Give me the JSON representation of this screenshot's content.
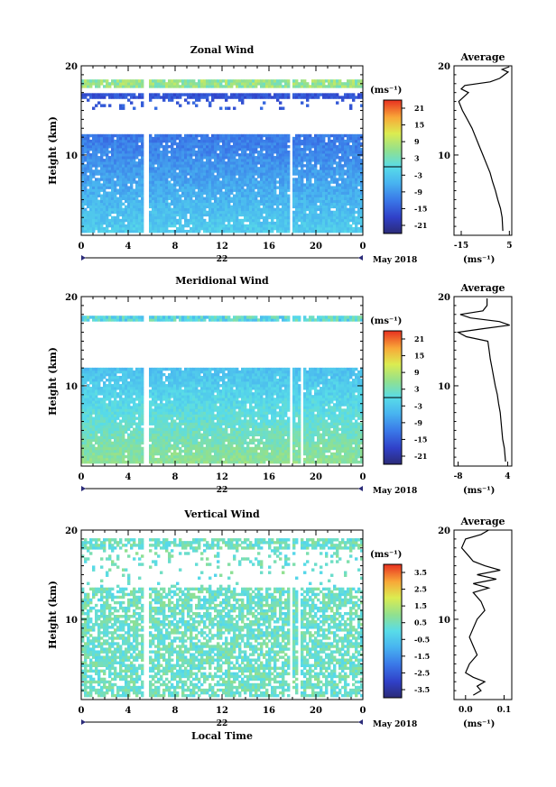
{
  "chart_data": [
    {
      "type": "heatmap",
      "title": "Zonal Wind",
      "ylabel": "Height (km)",
      "yticks": [
        "20",
        "10"
      ],
      "xticks": [
        "0",
        "4",
        "8",
        "12",
        "16",
        "20",
        "0"
      ],
      "xlim": [
        0,
        24
      ],
      "ylim": [
        1,
        20
      ],
      "date_mark": "22",
      "date_label": "May 2018",
      "colorbar": {
        "unit": "(ms⁻¹)",
        "ticks": [
          "21",
          "15",
          "9",
          "3",
          "-3",
          "-9",
          "-15",
          "-21"
        ],
        "range": [
          -24,
          24
        ]
      },
      "average_panel": {
        "title": "Average",
        "xlabel": "(ms⁻¹)",
        "xticks": [
          "-15",
          "5"
        ],
        "yticks": [
          "20",
          "10"
        ],
        "xlim": [
          -18,
          6
        ],
        "profile": [
          [
            1.5,
            2.3
          ],
          [
            3,
            2.0
          ],
          [
            4,
            1.3
          ],
          [
            5,
            0.2
          ],
          [
            6,
            -0.8
          ],
          [
            7,
            -2.0
          ],
          [
            8,
            -3.0
          ],
          [
            9,
            -4.5
          ],
          [
            10,
            -6.0
          ],
          [
            11,
            -7.5
          ],
          [
            12,
            -9.0
          ],
          [
            13,
            -10.5
          ],
          [
            14,
            -12.5
          ],
          [
            15,
            -14.5
          ],
          [
            16,
            -16.0
          ],
          [
            16.5,
            -14.0
          ],
          [
            17,
            -12.0
          ],
          [
            17.4,
            -15.0
          ],
          [
            17.8,
            -13.5
          ],
          [
            18.2,
            -3.0
          ],
          [
            18.6,
            1.0
          ],
          [
            19,
            3.0
          ],
          [
            19.3,
            4.5
          ],
          [
            19.6,
            2.0
          ],
          [
            19.9,
            5.0
          ]
        ]
      }
    },
    {
      "type": "heatmap",
      "title": "Meridional Wind",
      "ylabel": "Height (km)",
      "yticks": [
        "20",
        "10"
      ],
      "xticks": [
        "0",
        "4",
        "8",
        "12",
        "16",
        "20",
        "0"
      ],
      "xlim": [
        0,
        24
      ],
      "ylim": [
        1,
        20
      ],
      "date_mark": "22",
      "date_label": "May 2018",
      "colorbar": {
        "unit": "(ms⁻¹)",
        "ticks": [
          "21",
          "15",
          "9",
          "3",
          "-3",
          "-9",
          "-15",
          "-21"
        ],
        "range": [
          -24,
          24
        ]
      },
      "average_panel": {
        "title": "Average",
        "xlabel": "(ms⁻¹)",
        "xticks": [
          "-8",
          "4"
        ],
        "yticks": [
          "20",
          "10"
        ],
        "xlim": [
          -9,
          5
        ],
        "profile": [
          [
            1.5,
            3.5
          ],
          [
            3,
            3.2
          ],
          [
            4,
            2.8
          ],
          [
            5,
            2.6
          ],
          [
            6,
            2.4
          ],
          [
            7,
            2.2
          ],
          [
            8,
            1.8
          ],
          [
            9,
            1.5
          ],
          [
            10,
            1.0
          ],
          [
            11,
            0.6
          ],
          [
            12,
            0.2
          ],
          [
            13,
            -0.2
          ],
          [
            14,
            -0.5
          ],
          [
            15,
            -0.8
          ],
          [
            15.5,
            -6.0
          ],
          [
            16,
            -8.0
          ],
          [
            16.4,
            -2.0
          ],
          [
            16.8,
            4.5
          ],
          [
            17.2,
            2.0
          ],
          [
            17.6,
            -5.0
          ],
          [
            18,
            -7.5
          ],
          [
            18.4,
            -2.0
          ],
          [
            19,
            -1.0
          ],
          [
            19.8,
            -1.0
          ]
        ]
      }
    },
    {
      "type": "heatmap",
      "title": "Vertical Wind",
      "ylabel": "Height (km)",
      "yticks": [
        "20",
        "10"
      ],
      "xticks": [
        "0",
        "4",
        "8",
        "12",
        "16",
        "20",
        "0"
      ],
      "xlim": [
        0,
        24
      ],
      "ylim": [
        1,
        20
      ],
      "date_mark": "22",
      "date_label": "May 2018",
      "xlabel": "Local Time",
      "colorbar": {
        "unit": "(ms⁻¹)",
        "ticks": [
          "3.5",
          "2.5",
          "1.5",
          "0.5",
          "-0.5",
          "-1.5",
          "-2.5",
          "-3.5"
        ],
        "range": [
          -4,
          4
        ]
      },
      "average_panel": {
        "title": "Average",
        "xlabel": "(ms⁻¹)",
        "xticks": [
          "0.0",
          "0.1"
        ],
        "yticks": [
          "20",
          "10"
        ],
        "xlim": [
          -0.03,
          0.12
        ],
        "profile": [
          [
            1.5,
            0.02
          ],
          [
            2,
            0.04
          ],
          [
            2.5,
            0.03
          ],
          [
            3,
            0.05
          ],
          [
            3.5,
            0.02
          ],
          [
            4,
            0.0
          ],
          [
            5,
            0.01
          ],
          [
            6,
            0.03
          ],
          [
            7,
            0.02
          ],
          [
            8,
            0.01
          ],
          [
            9,
            0.02
          ],
          [
            10,
            0.03
          ],
          [
            11,
            0.05
          ],
          [
            12,
            0.04
          ],
          [
            13,
            0.02
          ],
          [
            13.5,
            0.06
          ],
          [
            14,
            0.02
          ],
          [
            14.5,
            0.08
          ],
          [
            15,
            0.03
          ],
          [
            15.5,
            0.09
          ],
          [
            16,
            0.05
          ],
          [
            16.5,
            0.02
          ],
          [
            17,
            0.01
          ],
          [
            18,
            -0.01
          ],
          [
            19,
            0.0
          ],
          [
            19.5,
            0.04
          ],
          [
            20,
            0.06
          ]
        ]
      }
    }
  ]
}
